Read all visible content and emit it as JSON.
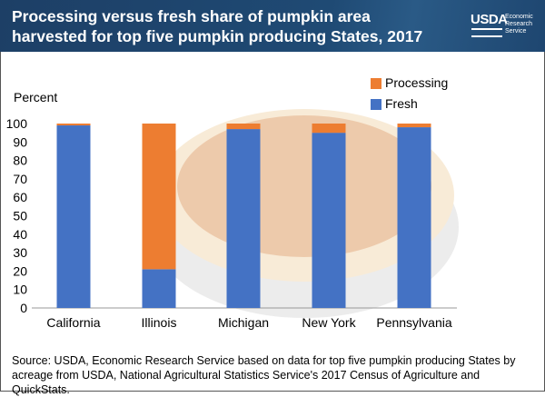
{
  "header": {
    "title": "Processing versus fresh share of pumpkin area harvested for top five pumpkin producing States, 2017",
    "logo_text": "USDA",
    "agency": "Economic Research Service"
  },
  "chart_data": {
    "type": "bar",
    "stacked": true,
    "title": "Processing versus fresh share of pumpkin area harvested for top five pumpkin producing States, 2017",
    "ylabel": "Percent",
    "xlabel": "",
    "ylim": [
      0,
      100
    ],
    "yticks": [
      0,
      10,
      20,
      30,
      40,
      50,
      60,
      70,
      80,
      90,
      100
    ],
    "categories": [
      "California",
      "Illinois",
      "Michigan",
      "New York",
      "Pennsylvania"
    ],
    "series": [
      {
        "name": "Fresh",
        "color": "#4472c4",
        "values": [
          99,
          21,
          97,
          95,
          98
        ]
      },
      {
        "name": "Processing",
        "color": "#ed7d31",
        "values": [
          1,
          79,
          3,
          5,
          2
        ]
      }
    ],
    "legend_position": "top-right",
    "grid": false
  },
  "source": "Source: USDA, Economic Research Service based on data for top five pumpkin producing States by acreage from USDA, National Agricultural Statistics Service's 2017 Census of Agriculture and QuickStats."
}
